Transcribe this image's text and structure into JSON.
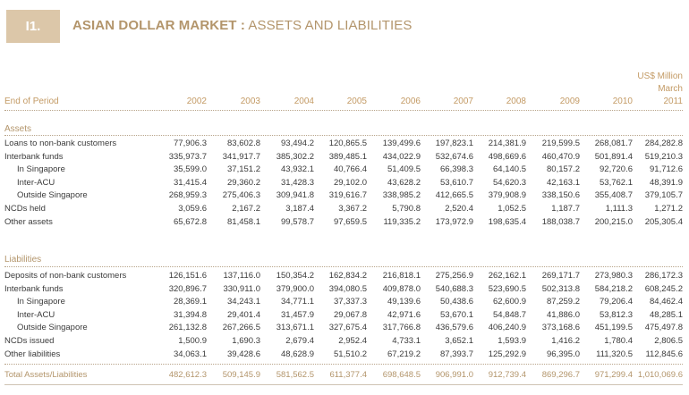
{
  "header": {
    "section_number": "I1.",
    "title_bold": "ASIAN DOLLAR MARKET :",
    "title_rest": " ASSETS AND LIABILITIES"
  },
  "units": {
    "currency": "US$ Million",
    "month": "March"
  },
  "columns": {
    "label": "End of Period",
    "years": [
      "2002",
      "2003",
      "2004",
      "2005",
      "2006",
      "2007",
      "2008",
      "2009",
      "2010",
      "2011"
    ]
  },
  "assets": {
    "heading": "Assets",
    "rows": [
      {
        "label": "Loans to non-bank customers",
        "indent": false,
        "values": [
          "77,906.3",
          "83,602.8",
          "93,494.2",
          "120,865.5",
          "139,499.6",
          "197,823.1",
          "214,381.9",
          "219,599.5",
          "268,081.7",
          "284,282.8"
        ]
      },
      {
        "label": "Interbank funds",
        "indent": false,
        "values": [
          "335,973.7",
          "341,917.7",
          "385,302.2",
          "389,485.1",
          "434,022.9",
          "532,674.6",
          "498,669.6",
          "460,470.9",
          "501,891.4",
          "519,210.3"
        ]
      },
      {
        "label": "In Singapore",
        "indent": true,
        "values": [
          "35,599.0",
          "37,151.2",
          "43,932.1",
          "40,766.4",
          "51,409.5",
          "66,398.3",
          "64,140.5",
          "80,157.2",
          "92,720.6",
          "91,712.6"
        ]
      },
      {
        "label": "Inter-ACU",
        "indent": true,
        "values": [
          "31,415.4",
          "29,360.2",
          "31,428.3",
          "29,102.0",
          "43,628.2",
          "53,610.7",
          "54,620.3",
          "42,163.1",
          "53,762.1",
          "48,391.9"
        ]
      },
      {
        "label": "Outside Singapore",
        "indent": true,
        "values": [
          "268,959.3",
          "275,406.3",
          "309,941.8",
          "319,616.7",
          "338,985.2",
          "412,665.5",
          "379,908.9",
          "338,150.6",
          "355,408.7",
          "379,105.7"
        ]
      },
      {
        "label": "NCDs held",
        "indent": false,
        "values": [
          "3,059.6",
          "2,167.2",
          "3,187.4",
          "3,367.2",
          "5,790.8",
          "2,520.4",
          "1,052.5",
          "1,187.7",
          "1,111.3",
          "1,271.2"
        ]
      },
      {
        "label": "Other assets",
        "indent": false,
        "values": [
          "65,672.8",
          "81,458.1",
          "99,578.7",
          "97,659.5",
          "119,335.2",
          "173,972.9",
          "198,635.4",
          "188,038.7",
          "200,215.0",
          "205,305.4"
        ]
      }
    ]
  },
  "liabilities": {
    "heading": "Liabilities",
    "rows": [
      {
        "label": "Deposits of non-bank customers",
        "indent": false,
        "values": [
          "126,151.6",
          "137,116.0",
          "150,354.2",
          "162,834.2",
          "216,818.1",
          "275,256.9",
          "262,162.1",
          "269,171.7",
          "273,980.3",
          "286,172.3"
        ]
      },
      {
        "label": "Interbank funds",
        "indent": false,
        "values": [
          "320,896.7",
          "330,911.0",
          "379,900.0",
          "394,080.5",
          "409,878.0",
          "540,688.3",
          "523,690.5",
          "502,313.8",
          "584,218.2",
          "608,245.2"
        ]
      },
      {
        "label": "In Singapore",
        "indent": true,
        "values": [
          "28,369.1",
          "34,243.1",
          "34,771.1",
          "37,337.3",
          "49,139.6",
          "50,438.6",
          "62,600.9",
          "87,259.2",
          "79,206.4",
          "84,462.4"
        ]
      },
      {
        "label": "Inter-ACU",
        "indent": true,
        "values": [
          "31,394.8",
          "29,401.4",
          "31,457.9",
          "29,067.8",
          "42,971.6",
          "53,670.1",
          "54,848.7",
          "41,886.0",
          "53,812.3",
          "48,285.1"
        ]
      },
      {
        "label": "Outside Singapore",
        "indent": true,
        "values": [
          "261,132.8",
          "267,266.5",
          "313,671.1",
          "327,675.4",
          "317,766.8",
          "436,579.6",
          "406,240.9",
          "373,168.6",
          "451,199.5",
          "475,497.8"
        ]
      },
      {
        "label": "NCDs issued",
        "indent": false,
        "values": [
          "1,500.9",
          "1,690.3",
          "2,679.4",
          "2,952.4",
          "4,733.1",
          "3,652.1",
          "1,593.9",
          "1,416.2",
          "1,780.4",
          "2,806.5"
        ]
      },
      {
        "label": "Other liabilities",
        "indent": false,
        "values": [
          "34,063.1",
          "39,428.6",
          "48,628.9",
          "51,510.2",
          "67,219.2",
          "87,393.7",
          "125,292.9",
          "96,395.0",
          "111,320.5",
          "112,845.6"
        ]
      }
    ]
  },
  "total": {
    "label": "Total Assets/Liabilities",
    "values": [
      "482,612.3",
      "509,145.9",
      "581,562.5",
      "611,377.4",
      "698,648.5",
      "906,991.0",
      "912,739.4",
      "869,296.7",
      "971,299.4",
      "1,010,069.6"
    ]
  }
}
